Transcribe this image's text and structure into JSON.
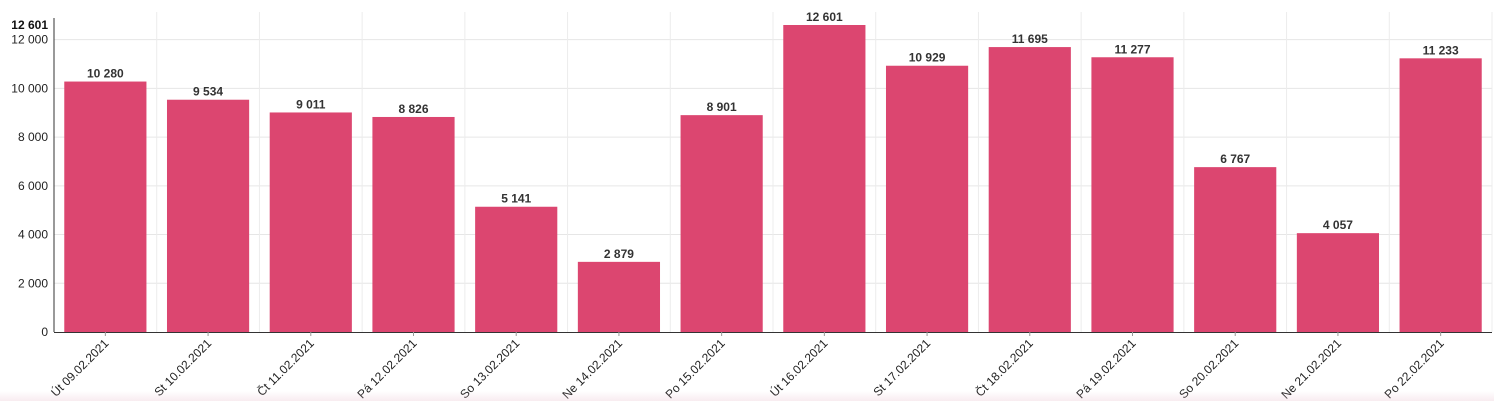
{
  "chart_data": {
    "type": "bar",
    "categories": [
      "Út 09.02.2021",
      "St 10.02.2021",
      "Čt 11.02.2021",
      "Pá 12.02.2021",
      "So 13.02.2021",
      "Ne 14.02.2021",
      "Po 15.02.2021",
      "Út 16.02.2021",
      "St 17.02.2021",
      "Čt 18.02.2021",
      "Pá 19.02.2021",
      "So 20.02.2021",
      "Ne 21.02.2021",
      "Po 22.02.2021"
    ],
    "values": [
      10280,
      9534,
      9011,
      8826,
      5141,
      2879,
      8901,
      12601,
      10929,
      11695,
      11277,
      6767,
      4057,
      11233
    ],
    "value_labels": [
      "10 280",
      "9 534",
      "9 011",
      "8 826",
      "5 141",
      "2 879",
      "8 901",
      "12 601",
      "10 929",
      "11 695",
      "11 277",
      "6 767",
      "4 057",
      "11 233"
    ],
    "y_ticks": [
      0,
      2000,
      4000,
      6000,
      8000,
      10000,
      12000
    ],
    "y_tick_labels": [
      "0",
      "2 000",
      "4 000",
      "6 000",
      "8 000",
      "10 000",
      "12 000"
    ],
    "y_max_label": "12 601",
    "ylim": [
      0,
      12601
    ],
    "grid": true,
    "legend": "none",
    "bar_color": "#dc4670"
  }
}
